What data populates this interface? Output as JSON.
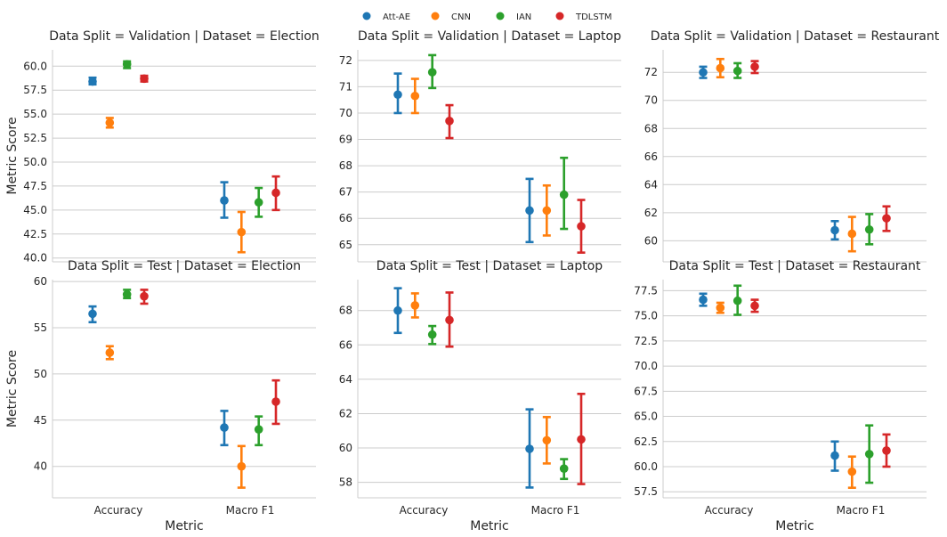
{
  "legend": {
    "items": [
      {
        "name": "Att-AE",
        "color": "#1f77b4"
      },
      {
        "name": "CNN",
        "color": "#ff7f0e"
      },
      {
        "name": "IAN",
        "color": "#2ca02c"
      },
      {
        "name": "TDLSTM",
        "color": "#d62728"
      }
    ]
  },
  "chart_data": [
    {
      "type": "pointplot",
      "title": "Data Split = Validation | Dataset = Election",
      "xlabel": "",
      "ylabel": "Metric Score",
      "categories": [
        "Accuracy",
        "Macro F1"
      ],
      "yticks": [
        40.0,
        42.5,
        45.0,
        47.5,
        50.0,
        52.5,
        55.0,
        57.5,
        60.0
      ],
      "ytick_labels": [
        "40.0",
        "42.5",
        "45.0",
        "47.5",
        "50.0",
        "52.5",
        "55.0",
        "57.5",
        "60.0"
      ],
      "ylim": [
        39.6,
        61.7
      ],
      "series": [
        {
          "name": "Att-AE",
          "values": [
            58.4,
            46.0
          ],
          "ci": [
            [
              58.1,
              58.8
            ],
            [
              44.2,
              47.9
            ]
          ]
        },
        {
          "name": "CNN",
          "values": [
            54.1,
            42.7
          ],
          "ci": [
            [
              53.6,
              54.6
            ],
            [
              40.6,
              44.8
            ]
          ]
        },
        {
          "name": "IAN",
          "values": [
            60.2,
            45.8
          ],
          "ci": [
            [
              59.8,
              60.5
            ],
            [
              44.3,
              47.3
            ]
          ]
        },
        {
          "name": "TDLSTM",
          "values": [
            58.7,
            46.8
          ],
          "ci": [
            [
              58.4,
              59.0
            ],
            [
              45.0,
              48.5
            ]
          ]
        }
      ]
    },
    {
      "type": "pointplot",
      "title": "Data Split = Validation | Dataset = Laptop",
      "xlabel": "",
      "ylabel": "",
      "categories": [
        "Accuracy",
        "Macro F1"
      ],
      "yticks": [
        65,
        66,
        67,
        68,
        69,
        70,
        71,
        72
      ],
      "ytick_labels": [
        "65",
        "66",
        "67",
        "68",
        "69",
        "70",
        "71",
        "72"
      ],
      "ylim": [
        64.35,
        72.4
      ],
      "series": [
        {
          "name": "Att-AE",
          "values": [
            70.7,
            66.3
          ],
          "ci": [
            [
              70.0,
              71.5
            ],
            [
              65.1,
              67.5
            ]
          ]
        },
        {
          "name": "CNN",
          "values": [
            70.65,
            66.3
          ],
          "ci": [
            [
              70.0,
              71.3
            ],
            [
              65.35,
              67.25
            ]
          ]
        },
        {
          "name": "IAN",
          "values": [
            71.55,
            66.9
          ],
          "ci": [
            [
              70.95,
              72.2
            ],
            [
              65.6,
              68.3
            ]
          ]
        },
        {
          "name": "TDLSTM",
          "values": [
            69.7,
            65.7
          ],
          "ci": [
            [
              69.05,
              70.3
            ],
            [
              64.7,
              66.7
            ]
          ]
        }
      ]
    },
    {
      "type": "pointplot",
      "title": "Data Split = Validation | Dataset = Restaurant",
      "xlabel": "",
      "ylabel": "",
      "categories": [
        "Accuracy",
        "Macro F1"
      ],
      "yticks": [
        60,
        62,
        64,
        66,
        68,
        70,
        72
      ],
      "ytick_labels": [
        "60",
        "62",
        "64",
        "66",
        "68",
        "70",
        "72"
      ],
      "ylim": [
        58.5,
        73.6
      ],
      "series": [
        {
          "name": "Att-AE",
          "values": [
            72.0,
            60.75
          ],
          "ci": [
            [
              71.6,
              72.4
            ],
            [
              60.1,
              61.4
            ]
          ]
        },
        {
          "name": "CNN",
          "values": [
            72.3,
            60.5
          ],
          "ci": [
            [
              71.65,
              72.95
            ],
            [
              59.25,
              61.7
            ]
          ]
        },
        {
          "name": "IAN",
          "values": [
            72.1,
            60.8
          ],
          "ci": [
            [
              71.6,
              72.65
            ],
            [
              59.75,
              61.9
            ]
          ]
        },
        {
          "name": "TDLSTM",
          "values": [
            72.4,
            61.6
          ],
          "ci": [
            [
              71.95,
              72.8
            ],
            [
              60.7,
              62.45
            ]
          ]
        }
      ]
    },
    {
      "type": "pointplot",
      "title": "Data Split = Test | Dataset = Election",
      "xlabel": "Metric",
      "ylabel": "Metric Score",
      "categories": [
        "Accuracy",
        "Macro F1"
      ],
      "yticks": [
        40,
        45,
        50,
        55,
        60
      ],
      "ytick_labels": [
        "40",
        "45",
        "50",
        "55",
        "60"
      ],
      "ylim": [
        36.6,
        60.2
      ],
      "series": [
        {
          "name": "Att-AE",
          "values": [
            56.5,
            44.2
          ],
          "ci": [
            [
              55.6,
              57.3
            ],
            [
              42.3,
              46.0
            ]
          ]
        },
        {
          "name": "CNN",
          "values": [
            52.3,
            40.0
          ],
          "ci": [
            [
              51.6,
              53.0
            ],
            [
              37.7,
              42.2
            ]
          ]
        },
        {
          "name": "IAN",
          "values": [
            58.6,
            44.0
          ],
          "ci": [
            [
              58.2,
              59.1
            ],
            [
              42.3,
              45.4
            ]
          ]
        },
        {
          "name": "TDLSTM",
          "values": [
            58.4,
            47.0
          ],
          "ci": [
            [
              57.6,
              59.1
            ],
            [
              44.6,
              49.3
            ]
          ]
        }
      ]
    },
    {
      "type": "pointplot",
      "title": "Data Split = Test | Dataset = Laptop",
      "xlabel": "Metric",
      "ylabel": "",
      "categories": [
        "Accuracy",
        "Macro F1"
      ],
      "yticks": [
        58,
        60,
        62,
        64,
        66,
        68
      ],
      "ytick_labels": [
        "58",
        "60",
        "62",
        "64",
        "66",
        "68"
      ],
      "ylim": [
        57.1,
        69.8
      ],
      "series": [
        {
          "name": "Att-AE",
          "values": [
            68.0,
            59.95
          ],
          "ci": [
            [
              66.7,
              69.3
            ],
            [
              57.7,
              62.25
            ]
          ]
        },
        {
          "name": "CNN",
          "values": [
            68.3,
            60.45
          ],
          "ci": [
            [
              67.6,
              69.0
            ],
            [
              59.1,
              61.8
            ]
          ]
        },
        {
          "name": "IAN",
          "values": [
            66.6,
            58.8
          ],
          "ci": [
            [
              66.05,
              67.1
            ],
            [
              58.2,
              59.35
            ]
          ]
        },
        {
          "name": "TDLSTM",
          "values": [
            67.45,
            60.5
          ],
          "ci": [
            [
              65.9,
              69.05
            ],
            [
              57.9,
              63.15
            ]
          ]
        }
      ]
    },
    {
      "type": "pointplot",
      "title": "Data Split = Test | Dataset = Restaurant",
      "xlabel": "Metric",
      "ylabel": "",
      "categories": [
        "Accuracy",
        "Macro F1"
      ],
      "yticks": [
        57.5,
        60.0,
        62.5,
        65.0,
        67.5,
        70.0,
        72.5,
        75.0,
        77.5
      ],
      "ytick_labels": [
        "57.5",
        "60.0",
        "62.5",
        "65.0",
        "67.5",
        "70.0",
        "72.5",
        "75.0",
        "77.5"
      ],
      "ylim": [
        56.9,
        78.6
      ],
      "series": [
        {
          "name": "Att-AE",
          "values": [
            76.6,
            61.1
          ],
          "ci": [
            [
              76.0,
              77.2
            ],
            [
              59.6,
              62.5
            ]
          ]
        },
        {
          "name": "CNN",
          "values": [
            75.8,
            59.5
          ],
          "ci": [
            [
              75.3,
              76.3
            ],
            [
              57.9,
              61.0
            ]
          ]
        },
        {
          "name": "IAN",
          "values": [
            76.5,
            61.25
          ],
          "ci": [
            [
              75.1,
              78.0
            ],
            [
              58.4,
              64.1
            ]
          ]
        },
        {
          "name": "TDLSTM",
          "values": [
            76.0,
            61.6
          ],
          "ci": [
            [
              75.4,
              76.6
            ],
            [
              60.0,
              63.2
            ]
          ]
        }
      ]
    }
  ]
}
